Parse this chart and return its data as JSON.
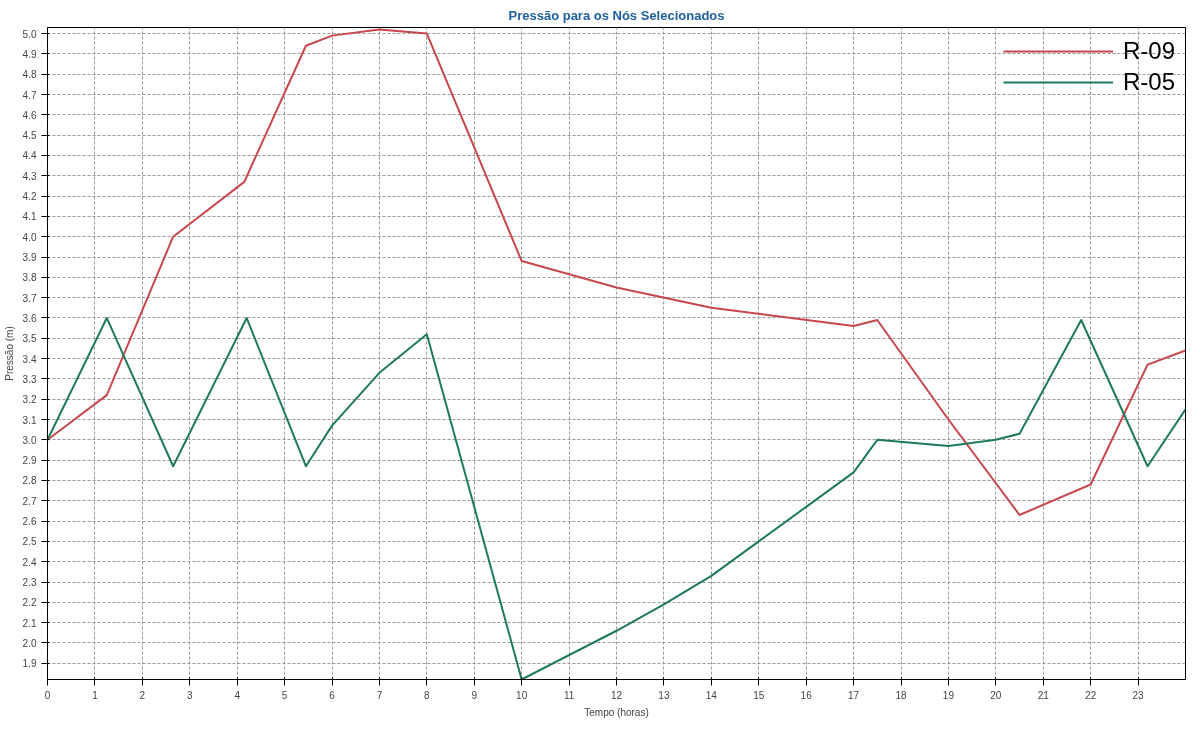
{
  "chart_data": {
    "type": "line",
    "title": "Pressão para os Nós Selecionados",
    "xlabel": "Tempo (horas)",
    "ylabel": "Pressão (m)",
    "xlim": [
      0,
      24
    ],
    "xticks": [
      0,
      1,
      2,
      3,
      4,
      5,
      6,
      7,
      8,
      9,
      10,
      11,
      12,
      13,
      14,
      15,
      16,
      17,
      18,
      19,
      20,
      21,
      22,
      23
    ],
    "ylim": [
      1.82,
      5.03
    ],
    "yticks": [
      1.9,
      {
        "value": 2,
        "label": "2.0"
      },
      2.1,
      2.2,
      2.3,
      2.4,
      2.5,
      2.6,
      2.7,
      2.8,
      2.9,
      {
        "value": 3,
        "label": "3.0"
      },
      3.1,
      3.2,
      3.3,
      3.4,
      3.5,
      3.6,
      3.7,
      3.8,
      3.9,
      {
        "value": 4,
        "label": "4.0"
      },
      4.1,
      4.2,
      4.3,
      4.4,
      4.5,
      4.6,
      4.7,
      4.8,
      4.9,
      {
        "value": 5,
        "label": "5.0"
      }
    ],
    "grid": true,
    "legend": "top right",
    "marker": "none",
    "line_style": "solid",
    "series": [
      {
        "name": "R-09",
        "color": "#c8474f",
        "x": [
          0,
          1.25,
          2.65,
          4.15,
          5.45,
          6,
          7,
          8,
          10,
          12,
          14,
          17,
          17.5,
          19,
          20.5,
          22,
          23.2,
          24
        ],
        "values": [
          3.0,
          3.22,
          4.0,
          4.27,
          4.94,
          4.99,
          5.02,
          5.0,
          3.88,
          3.75,
          3.65,
          3.56,
          3.59,
          3.1,
          2.63,
          2.78,
          3.37,
          3.44
        ]
      },
      {
        "name": "R-05",
        "color": "#1f7a5a",
        "x": [
          0,
          1.25,
          2.65,
          4.2,
          5.45,
          6,
          7,
          8,
          10,
          12,
          13,
          14,
          15,
          16,
          17,
          17.5,
          19,
          20,
          20.5,
          21.8,
          23.2,
          24
        ],
        "values": [
          3.0,
          3.6,
          2.87,
          3.6,
          2.87,
          3.07,
          3.33,
          3.52,
          1.82,
          2.06,
          2.19,
          2.33,
          2.5,
          2.67,
          2.84,
          3.0,
          2.97,
          3.0,
          3.03,
          3.59,
          2.87,
          3.15
        ]
      }
    ]
  }
}
